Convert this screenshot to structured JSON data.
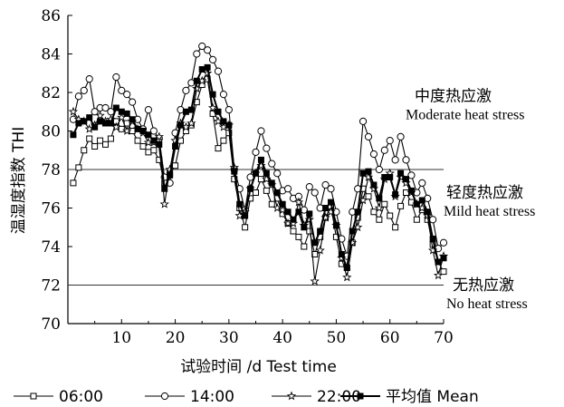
{
  "chart_data": {
    "type": "line",
    "xlabel": "试验时间 /d Test time",
    "ylabel": "温湿度指数 THI",
    "xlim": [
      0,
      70
    ],
    "ylim": [
      70,
      86
    ],
    "xticks": [
      10,
      20,
      30,
      40,
      50,
      60,
      70
    ],
    "yticks": [
      70,
      72,
      74,
      76,
      78,
      80,
      82,
      84,
      86
    ],
    "grid": false,
    "legend_position": "bottom",
    "reference_lines": [
      {
        "y": 78,
        "label_cn": "中度热应激",
        "label_en": "Moderate heat stress"
      },
      {
        "y": 72,
        "label_cn": "轻度热应激",
        "label_en": "Mild heat stress"
      }
    ],
    "zone_labels": [
      {
        "label_cn": "中度热应激",
        "label_en": "Moderate heat stress",
        "y": 80.8
      },
      {
        "label_cn": "轻度热应激",
        "label_en": "Mild heat stress",
        "y": 75.8
      },
      {
        "label_cn": "无热应激",
        "label_en": "No heat stress",
        "y": 71.0
      }
    ],
    "x": [
      1,
      2,
      3,
      4,
      5,
      6,
      7,
      8,
      9,
      10,
      11,
      12,
      13,
      14,
      15,
      16,
      17,
      18,
      19,
      20,
      21,
      22,
      23,
      24,
      25,
      26,
      27,
      28,
      29,
      30,
      31,
      32,
      33,
      34,
      35,
      36,
      37,
      38,
      39,
      40,
      41,
      42,
      43,
      44,
      45,
      46,
      47,
      48,
      49,
      50,
      51,
      52,
      53,
      54,
      55,
      56,
      57,
      58,
      59,
      60,
      61,
      62,
      63,
      64,
      65,
      66,
      67,
      68,
      69,
      70
    ],
    "series": [
      {
        "name": "06:00",
        "marker": "square",
        "values": [
          77.3,
          78.1,
          79.0,
          79.6,
          79.2,
          79.5,
          79.3,
          79.6,
          80.5,
          80.1,
          80.4,
          80.0,
          79.5,
          79.2,
          78.9,
          79.0,
          78.5,
          77.3,
          77.8,
          78.2,
          79.5,
          80.0,
          80.3,
          81.5,
          82.4,
          82.7,
          80.9,
          79.1,
          79.5,
          79.9,
          77.5,
          76.0,
          75.0,
          76.5,
          76.8,
          77.5,
          76.9,
          76.2,
          76.5,
          75.7,
          75.2,
          74.8,
          74.5,
          74.0,
          74.8,
          73.6,
          74.5,
          75.5,
          76.1,
          74.5,
          73.1,
          72.9,
          74.2,
          75.5,
          77.0,
          76.6,
          75.8,
          75.4,
          76.2,
          75.6,
          75.0,
          76.1,
          76.8,
          76.3,
          75.4,
          75.9,
          75.4,
          74.1,
          73.2,
          72.7
        ]
      },
      {
        "name": "14:00",
        "marker": "circle",
        "values": [
          80.6,
          81.8,
          82.1,
          82.7,
          81.0,
          81.2,
          81.2,
          81.0,
          82.8,
          82.1,
          81.9,
          81.5,
          80.6,
          80.1,
          81.1,
          80.0,
          79.6,
          77.6,
          77.3,
          79.9,
          81.1,
          82.1,
          82.5,
          84.0,
          84.4,
          84.2,
          83.7,
          83.1,
          81.9,
          81.1,
          78.0,
          77.0,
          75.9,
          77.6,
          78.9,
          80.0,
          79.1,
          78.3,
          77.8,
          76.9,
          77.0,
          76.5,
          76.6,
          75.9,
          77.1,
          76.8,
          76.0,
          77.2,
          77.0,
          75.8,
          74.4,
          73.5,
          75.8,
          77.0,
          80.5,
          79.7,
          78.8,
          78.0,
          79.0,
          79.5,
          78.5,
          79.7,
          78.5,
          77.7,
          76.8,
          77.3,
          76.5,
          75.4,
          73.9,
          74.2
        ]
      },
      {
        "name": "22:00",
        "marker": "star",
        "values": [
          81.0,
          80.6,
          80.5,
          80.1,
          80.3,
          80.8,
          80.5,
          80.6,
          80.2,
          80.7,
          80.0,
          80.5,
          80.1,
          79.9,
          79.4,
          79.4,
          79.7,
          76.2,
          78.0,
          79.5,
          80.4,
          80.2,
          80.4,
          82.2,
          82.6,
          83.0,
          81.2,
          80.5,
          80.2,
          80.3,
          78.1,
          75.6,
          75.8,
          77.0,
          77.8,
          78.2,
          77.5,
          77.2,
          76.0,
          75.9,
          75.2,
          75.2,
          76.3,
          75.1,
          75.4,
          72.2,
          73.8,
          75.5,
          75.8,
          75.1,
          73.4,
          72.4,
          74.2,
          75.0,
          76.4,
          77.6,
          77.0,
          76.0,
          77.5,
          77.8,
          76.6,
          77.6,
          77.3,
          76.8,
          76.2,
          76.0,
          75.6,
          73.8,
          72.5,
          73.5
        ]
      },
      {
        "name": "平均值 Mean",
        "marker": "filled-square",
        "values": [
          79.8,
          80.4,
          80.5,
          80.7,
          80.2,
          80.5,
          80.4,
          80.4,
          81.2,
          81.0,
          80.9,
          80.6,
          80.1,
          80.0,
          79.8,
          79.5,
          79.3,
          77.0,
          77.7,
          79.2,
          80.3,
          81.0,
          81.1,
          82.6,
          83.2,
          83.3,
          81.9,
          81.0,
          80.5,
          80.3,
          77.9,
          76.2,
          75.6,
          77.0,
          77.8,
          78.5,
          77.8,
          77.3,
          76.8,
          76.2,
          75.8,
          75.4,
          75.8,
          75.0,
          75.7,
          74.2,
          74.8,
          76.0,
          76.3,
          75.1,
          73.6,
          72.9,
          74.8,
          75.8,
          77.8,
          77.9,
          77.2,
          76.5,
          77.6,
          77.6,
          76.7,
          77.8,
          77.5,
          76.9,
          76.2,
          76.4,
          75.8,
          74.4,
          73.2,
          73.4
        ]
      }
    ]
  }
}
